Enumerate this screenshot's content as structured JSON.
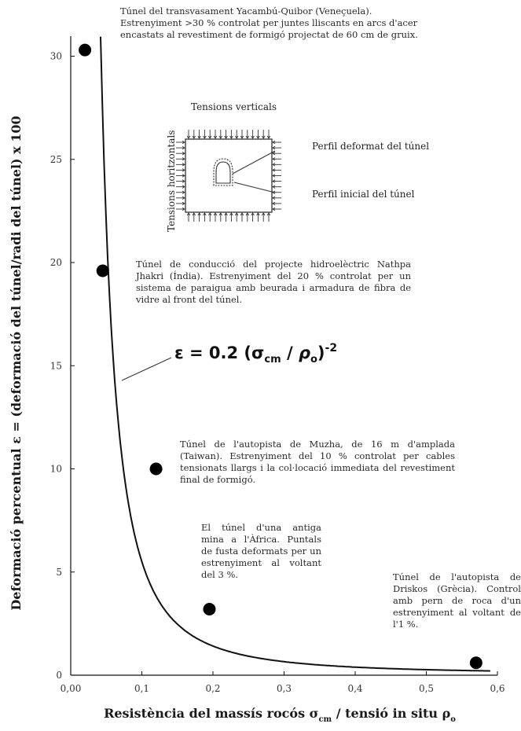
{
  "chart_data": {
    "type": "scatter",
    "title": "",
    "xlabel": "Resistència del massís rocós σcm / tensió in situ ρo",
    "ylabel": "Deformació percentual ε = (deformació del túnel/radi del túnel) x 100",
    "xlim": [
      0.0,
      0.6
    ],
    "ylim": [
      0,
      31
    ],
    "x_ticks": [
      "0,00",
      "0,1",
      "0,2",
      "0,3",
      "0,4",
      "0,5",
      "0,6"
    ],
    "y_ticks": [
      "0",
      "5",
      "10",
      "15",
      "20",
      "25",
      "30"
    ],
    "points": [
      {
        "x": 0.02,
        "y": 30.3
      },
      {
        "x": 0.045,
        "y": 19.6
      },
      {
        "x": 0.12,
        "y": 10.0
      },
      {
        "x": 0.195,
        "y": 3.2
      },
      {
        "x": 0.57,
        "y": 0.6
      }
    ],
    "curve": {
      "equation": "ε = 0.2 (σcm / ρo)-2",
      "coefficient": 0.2,
      "exponent": -2,
      "x_range": [
        0.042,
        0.59
      ]
    },
    "annotations": [
      "Túnel del transvasament Yacambú-Quibor (Veneçuela). Estrenyiment >30 % controlat per juntes lliscants en arcs d'acer encastats al revestiment de formigó projectat de 60 cm de gruix.",
      "Túnel de conducció del projecte hidroelèctric Nathpa Jhakri (Índia). Estrenyiment del 20 % controlat per un sistema de paraigua amb beurada i armadura de fibra de vidre al front del túnel.",
      "Túnel de l'autopista de Muzha, de 16 m d'amplada (Taiwan). Estrenyiment del 10 % controlat per cables tensionats llargs i la col·locació immediata del revestiment final de formigó.",
      "El túnel d'una antiga mina a l'Àfrica. Puntals de fusta deformats per un estrenyiment al voltant del 3 %.",
      "Túnel de l'autopista de Driskos (Grècia). Control amb pern de roca d'un estrenyiment al voltant de l'1 %."
    ],
    "inset": {
      "top_label": "Tensions verticals",
      "side_label": "Tensions horitzontals",
      "deformed_label": "Perfil deformat del túnel",
      "initial_label": "Perfil inicial del túnel"
    }
  }
}
